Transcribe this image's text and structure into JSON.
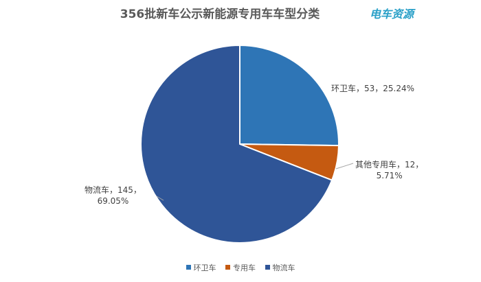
{
  "chart_data": {
    "type": "pie",
    "title": "356批新车公示新能源专用车车型分类",
    "slices": [
      {
        "name": "环卫车",
        "value": 53,
        "percent": "25.24%",
        "color": "#2e75b6"
      },
      {
        "name": "其他专用车",
        "value": 12,
        "percent": "5.71%",
        "color": "#c55a11"
      },
      {
        "name": "物流车",
        "value": 145,
        "percent": "69.05%",
        "color": "#2f5597"
      }
    ],
    "data_labels": [
      {
        "line1": "环卫车，53，25.24%",
        "line2": ""
      },
      {
        "line1": "其他专用车，12，",
        "line2": "5.71%"
      },
      {
        "line1": "物流车，145，",
        "line2": "69.05%"
      }
    ],
    "legend": [
      {
        "label": "环卫车",
        "color": "#2e75b6"
      },
      {
        "label": "专用车",
        "color": "#c55a11"
      },
      {
        "label": "物流车",
        "color": "#2f5597"
      }
    ],
    "legend_position": "bottom"
  },
  "logo": {
    "text": "电车资源"
  }
}
